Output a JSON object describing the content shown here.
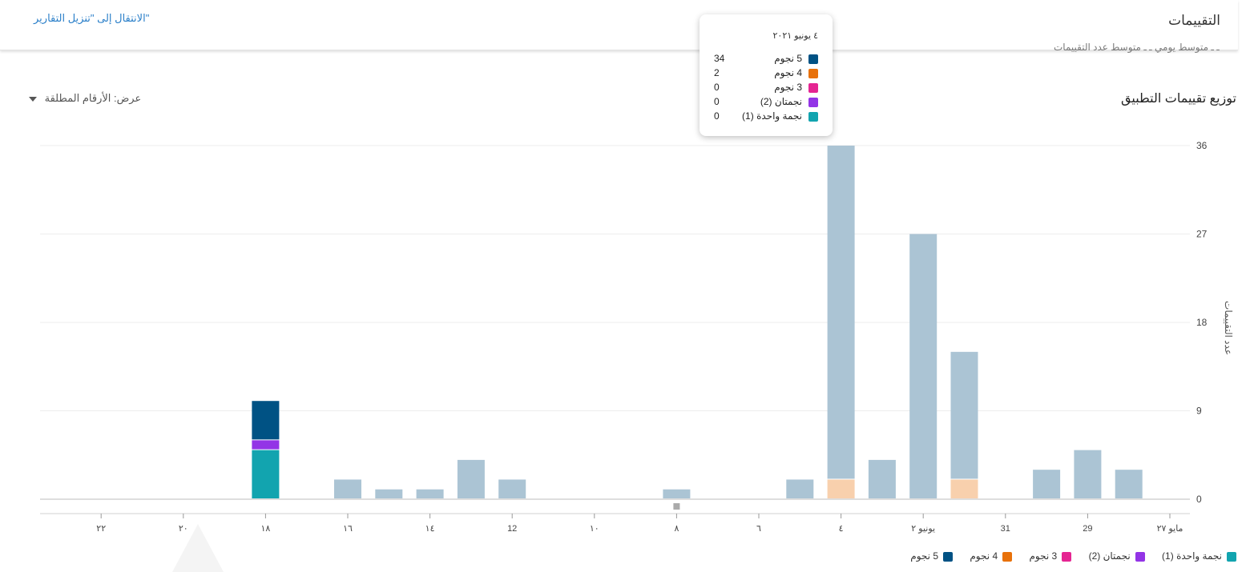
{
  "header": {
    "title": "التقييمات",
    "report_link": "الانتقال إلى \"تنزيل التقارير\"",
    "partial_legend": "ـ ـ متوسط يومي  ـ ـ  متوسط عدد التقييمات"
  },
  "section": {
    "title": "توزيع تقييمات التطبيق",
    "view_label": "عرض: الأرقام المطلقة"
  },
  "colors": {
    "five": "#005284",
    "four": "#e8710a",
    "three": "#e52592",
    "two": "#9334e6",
    "one": "#12a4af",
    "faded": "#abc4d4",
    "faded_orange": "#f8d0ad",
    "faded_teal": "#b0e0e4",
    "faded_purple": "#d8c2f5"
  },
  "chart_data": {
    "type": "bar",
    "stacked": true,
    "ylabel": "عدد التقييمات",
    "ylim": [
      0,
      36
    ],
    "yticks": [
      0,
      9,
      18,
      27,
      36
    ],
    "x_axis_direction": "right-to-left",
    "highlighted_index": 14,
    "series_names": [
      "5 نجوم",
      "4 نجوم",
      "3 نجوم",
      "نجمتان (2)",
      "نجمة واحدة (1)"
    ],
    "bars": [
      {
        "date": "2021-05-28",
        "values": [
          3,
          0,
          0,
          0,
          0
        ]
      },
      {
        "date": "2021-05-29",
        "values": [
          5,
          0,
          0,
          0,
          0
        ]
      },
      {
        "date": "2021-05-30",
        "values": [
          3,
          0,
          0,
          0,
          0
        ]
      },
      {
        "date": "2021-06-01",
        "values": [
          13,
          2,
          0,
          0,
          0
        ]
      },
      {
        "date": "2021-06-02",
        "values": [
          27,
          0,
          0,
          0,
          0
        ]
      },
      {
        "date": "2021-06-03",
        "values": [
          4,
          0,
          0,
          0,
          0
        ]
      },
      {
        "date": "2021-06-04",
        "values": [
          34,
          2,
          0,
          0,
          0
        ]
      },
      {
        "date": "2021-06-05",
        "values": [
          2,
          0,
          0,
          0,
          0
        ]
      },
      {
        "date": "2021-06-08",
        "values": [
          1,
          0,
          0,
          0,
          0
        ]
      },
      {
        "date": "2021-06-12",
        "values": [
          2,
          0,
          0,
          0,
          0
        ]
      },
      {
        "date": "2021-06-13",
        "values": [
          4,
          0,
          0,
          0,
          0
        ]
      },
      {
        "date": "2021-06-14",
        "values": [
          1,
          0,
          0,
          0,
          0
        ]
      },
      {
        "date": "2021-06-15",
        "values": [
          1,
          0,
          0,
          0,
          0
        ]
      },
      {
        "date": "2021-06-16",
        "values": [
          2,
          0,
          0,
          0,
          0
        ]
      },
      {
        "date": "2021-06-18",
        "values": [
          4,
          0,
          0,
          1,
          5
        ]
      }
    ],
    "xticks": [
      {
        "date": "2021-05-27",
        "label": "مايو ٢٧"
      },
      {
        "date": "2021-05-29",
        "label": "29"
      },
      {
        "date": "2021-05-31",
        "label": "31"
      },
      {
        "date": "2021-06-02",
        "label": "يونيو ٢"
      },
      {
        "date": "2021-06-04",
        "label": "٤"
      },
      {
        "date": "2021-06-06",
        "label": "٦"
      },
      {
        "date": "2021-06-08",
        "label": "٨"
      },
      {
        "date": "2021-06-10",
        "label": "١٠"
      },
      {
        "date": "2021-06-12",
        "label": "12"
      },
      {
        "date": "2021-06-14",
        "label": "١٤"
      },
      {
        "date": "2021-06-16",
        "label": "١٦"
      },
      {
        "date": "2021-06-18",
        "label": "١٨"
      },
      {
        "date": "2021-06-20",
        "label": "٢٠"
      },
      {
        "date": "2021-06-22",
        "label": "٢٢"
      }
    ]
  },
  "tooltip": {
    "date": "٤ يونيو ٢٠٢١",
    "rows": [
      {
        "label": "5 نجوم",
        "value": "34"
      },
      {
        "label": "4 نجوم",
        "value": "2"
      },
      {
        "label": "3 نجوم",
        "value": "0"
      },
      {
        "label": "نجمتان (2)",
        "value": "0"
      },
      {
        "label": "نجمة واحدة (1)",
        "value": "0"
      }
    ]
  },
  "legend": [
    {
      "label": "نجمة واحدة (1)",
      "color": "#12a4af"
    },
    {
      "label": "نجمتان (2)",
      "color": "#9334e6"
    },
    {
      "label": "3 نجوم",
      "color": "#e52592"
    },
    {
      "label": "4 نجوم",
      "color": "#e8710a"
    },
    {
      "label": "5 نجوم",
      "color": "#005284"
    }
  ]
}
